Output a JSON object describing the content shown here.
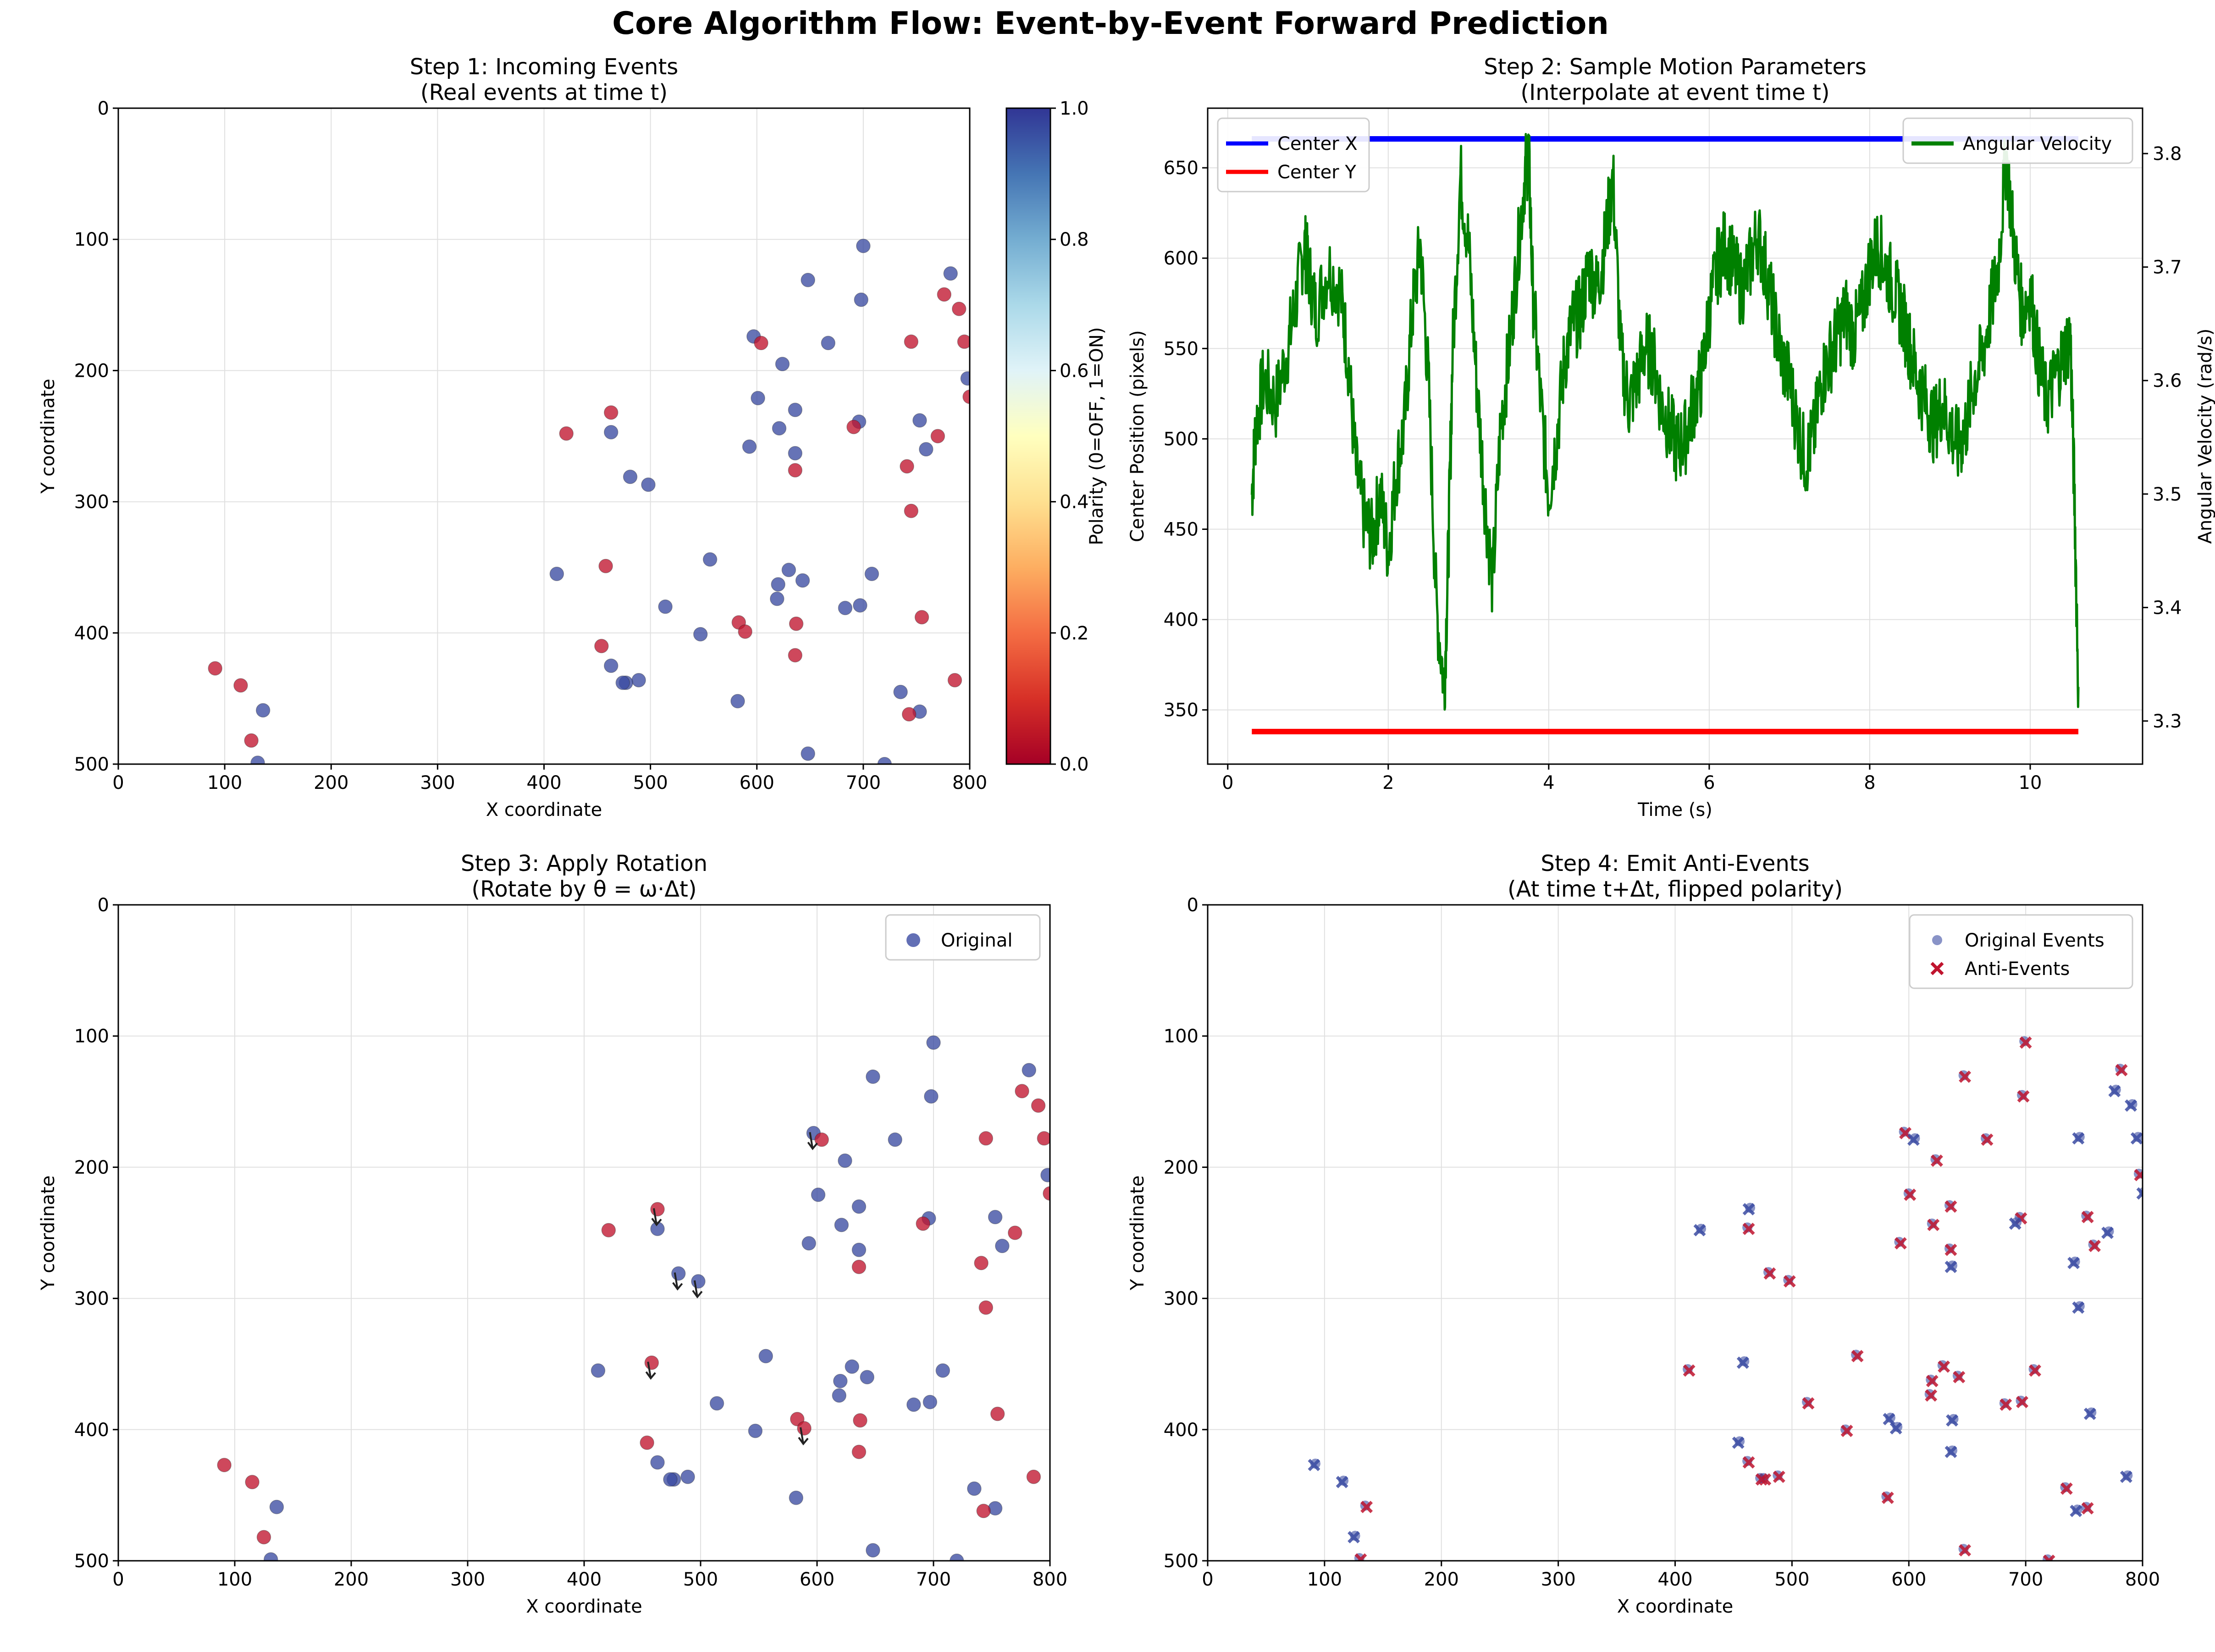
{
  "figure": {
    "suptitle": "Core Algorithm Flow: Event-by-Event Forward Prediction"
  },
  "chart_data": [
    {
      "id": "step1",
      "type": "scatter",
      "title": "Step 1: Incoming Events",
      "subtitle": "(Real events at time t)",
      "xlabel": "X coordinate",
      "ylabel": "Y coordinate",
      "xlim": [
        0,
        800
      ],
      "ylim": [
        500,
        0
      ],
      "xticks": [
        "0",
        "100",
        "200",
        "300",
        "400",
        "500",
        "600",
        "700",
        "800"
      ],
      "yticks": [
        "0",
        "100",
        "200",
        "300",
        "400",
        "500"
      ],
      "grid": true,
      "colorbar": {
        "label": "Polarity (0=OFF, 1=ON)",
        "range": [
          0,
          1
        ],
        "ticks": [
          "0.0",
          "0.2",
          "0.4",
          "0.6",
          "0.8",
          "1.0"
        ],
        "colormap": "RdYlBu"
      },
      "colors": {
        "on": "#3b4ba2",
        "off": "#c0142e"
      },
      "points": [
        {
          "x": 700,
          "y": 105,
          "p": 1
        },
        {
          "x": 782,
          "y": 126,
          "p": 1
        },
        {
          "x": 648,
          "y": 131,
          "p": 1
        },
        {
          "x": 776,
          "y": 142,
          "p": 0
        },
        {
          "x": 698,
          "y": 146,
          "p": 1
        },
        {
          "x": 790,
          "y": 153,
          "p": 0
        },
        {
          "x": 597,
          "y": 174,
          "p": 1
        },
        {
          "x": 604,
          "y": 179,
          "p": 0
        },
        {
          "x": 667,
          "y": 179,
          "p": 1
        },
        {
          "x": 745,
          "y": 178,
          "p": 0
        },
        {
          "x": 795,
          "y": 178,
          "p": 0
        },
        {
          "x": 624,
          "y": 195,
          "p": 1
        },
        {
          "x": 798,
          "y": 206,
          "p": 1
        },
        {
          "x": 800,
          "y": 220,
          "p": 0
        },
        {
          "x": 601,
          "y": 221,
          "p": 1
        },
        {
          "x": 463,
          "y": 232,
          "p": 0
        },
        {
          "x": 636,
          "y": 230,
          "p": 1
        },
        {
          "x": 753,
          "y": 238,
          "p": 1
        },
        {
          "x": 696,
          "y": 239,
          "p": 1
        },
        {
          "x": 691,
          "y": 243,
          "p": 0
        },
        {
          "x": 621,
          "y": 244,
          "p": 1
        },
        {
          "x": 421,
          "y": 248,
          "p": 0
        },
        {
          "x": 463,
          "y": 247,
          "p": 1
        },
        {
          "x": 770,
          "y": 250,
          "p": 0
        },
        {
          "x": 593,
          "y": 258,
          "p": 1
        },
        {
          "x": 759,
          "y": 260,
          "p": 1
        },
        {
          "x": 636,
          "y": 263,
          "p": 1
        },
        {
          "x": 741,
          "y": 273,
          "p": 0
        },
        {
          "x": 636,
          "y": 276,
          "p": 0
        },
        {
          "x": 481,
          "y": 281,
          "p": 1
        },
        {
          "x": 498,
          "y": 287,
          "p": 1
        },
        {
          "x": 745,
          "y": 307,
          "p": 0
        },
        {
          "x": 556,
          "y": 344,
          "p": 1
        },
        {
          "x": 458,
          "y": 349,
          "p": 0
        },
        {
          "x": 630,
          "y": 352,
          "p": 1
        },
        {
          "x": 412,
          "y": 355,
          "p": 1
        },
        {
          "x": 708,
          "y": 355,
          "p": 1
        },
        {
          "x": 643,
          "y": 360,
          "p": 1
        },
        {
          "x": 620,
          "y": 363,
          "p": 1
        },
        {
          "x": 619,
          "y": 374,
          "p": 1
        },
        {
          "x": 514,
          "y": 380,
          "p": 1
        },
        {
          "x": 683,
          "y": 381,
          "p": 1
        },
        {
          "x": 697,
          "y": 379,
          "p": 1
        },
        {
          "x": 755,
          "y": 388,
          "p": 0
        },
        {
          "x": 583,
          "y": 392,
          "p": 0
        },
        {
          "x": 637,
          "y": 393,
          "p": 0
        },
        {
          "x": 589,
          "y": 399,
          "p": 0
        },
        {
          "x": 547,
          "y": 401,
          "p": 1
        },
        {
          "x": 454,
          "y": 410,
          "p": 0
        },
        {
          "x": 636,
          "y": 417,
          "p": 0
        },
        {
          "x": 91,
          "y": 427,
          "p": 0
        },
        {
          "x": 463,
          "y": 425,
          "p": 1
        },
        {
          "x": 489,
          "y": 436,
          "p": 1
        },
        {
          "x": 477,
          "y": 438,
          "p": 1
        },
        {
          "x": 474,
          "y": 438,
          "p": 1
        },
        {
          "x": 786,
          "y": 436,
          "p": 0
        },
        {
          "x": 115,
          "y": 440,
          "p": 0
        },
        {
          "x": 735,
          "y": 445,
          "p": 1
        },
        {
          "x": 582,
          "y": 452,
          "p": 1
        },
        {
          "x": 136,
          "y": 459,
          "p": 1
        },
        {
          "x": 753,
          "y": 460,
          "p": 1
        },
        {
          "x": 743,
          "y": 462,
          "p": 0
        },
        {
          "x": 125,
          "y": 482,
          "p": 0
        },
        {
          "x": 648,
          "y": 492,
          "p": 1
        },
        {
          "x": 131,
          "y": 499,
          "p": 1
        },
        {
          "x": 720,
          "y": 500,
          "p": 1
        }
      ]
    },
    {
      "id": "step2",
      "type": "line",
      "title": "Step 2: Sample Motion Parameters",
      "subtitle": "(Interpolate at event time t)",
      "xlabel": "Time (s)",
      "ylabel": "Center Position (pixels)",
      "ylabel_right": "Angular Velocity (rad/s)",
      "xlim": [
        -0.25,
        11.4
      ],
      "ylim": [
        320,
        683
      ],
      "ylim_right": [
        3.262,
        3.84
      ],
      "xticks": [
        "0",
        "2",
        "4",
        "6",
        "8",
        "10"
      ],
      "yticks": [
        "350",
        "400",
        "450",
        "500",
        "550",
        "600",
        "650"
      ],
      "yticks_right": [
        "3.3",
        "3.4",
        "3.5",
        "3.6",
        "3.7",
        "3.8"
      ],
      "grid": true,
      "legend_left": "upper-left",
      "legend_right": "upper-right",
      "series": [
        {
          "name": "Center X",
          "color": "#0000ff",
          "axis": "left",
          "x": [
            0.3,
            10.6
          ],
          "y": [
            666,
            666
          ]
        },
        {
          "name": "Center Y",
          "color": "#ff0000",
          "axis": "left",
          "x": [
            0.3,
            10.6
          ],
          "y": [
            338,
            338
          ]
        },
        {
          "name": "Angular Velocity",
          "color": "#008000",
          "axis": "right",
          "x": [
            0.3,
            0.35,
            0.45,
            0.6,
            0.75,
            0.85,
            0.95,
            1.0,
            1.1,
            1.25,
            1.4,
            1.5,
            1.6,
            1.7,
            1.8,
            1.9,
            2.0,
            2.1,
            2.2,
            2.3,
            2.4,
            2.5,
            2.6,
            2.7,
            2.75,
            2.8,
            2.9,
            3.0,
            3.1,
            3.2,
            3.3,
            3.4,
            3.5,
            3.6,
            3.7,
            3.75,
            3.8,
            3.9,
            4.0,
            4.1,
            4.2,
            4.3,
            4.4,
            4.5,
            4.6,
            4.7,
            4.8,
            4.9,
            5.0,
            5.1,
            5.2,
            5.3,
            5.4,
            5.5,
            5.6,
            5.7,
            5.8,
            5.9,
            6.0,
            6.1,
            6.2,
            6.3,
            6.4,
            6.5,
            6.6,
            6.7,
            6.8,
            6.9,
            7.0,
            7.1,
            7.2,
            7.3,
            7.4,
            7.5,
            7.6,
            7.7,
            7.8,
            7.9,
            8.0,
            8.1,
            8.2,
            8.3,
            8.4,
            8.5,
            8.6,
            8.7,
            8.8,
            8.9,
            9.0,
            9.1,
            9.2,
            9.3,
            9.4,
            9.5,
            9.6,
            9.7,
            9.8,
            9.9,
            10.0,
            10.1,
            10.2,
            10.3,
            10.4,
            10.5,
            10.55,
            10.6
          ],
          "y": [
            3.5,
            3.56,
            3.6,
            3.58,
            3.63,
            3.67,
            3.72,
            3.7,
            3.66,
            3.7,
            3.68,
            3.62,
            3.52,
            3.48,
            3.46,
            3.5,
            3.45,
            3.52,
            3.56,
            3.66,
            3.72,
            3.6,
            3.4,
            3.33,
            3.45,
            3.62,
            3.78,
            3.72,
            3.6,
            3.5,
            3.42,
            3.56,
            3.62,
            3.7,
            3.78,
            3.8,
            3.68,
            3.58,
            3.5,
            3.55,
            3.62,
            3.65,
            3.66,
            3.7,
            3.68,
            3.72,
            3.78,
            3.62,
            3.58,
            3.6,
            3.63,
            3.62,
            3.58,
            3.56,
            3.54,
            3.55,
            3.58,
            3.6,
            3.66,
            3.7,
            3.72,
            3.7,
            3.68,
            3.7,
            3.73,
            3.7,
            3.66,
            3.62,
            3.6,
            3.56,
            3.53,
            3.55,
            3.6,
            3.62,
            3.64,
            3.66,
            3.64,
            3.66,
            3.7,
            3.72,
            3.7,
            3.68,
            3.66,
            3.63,
            3.6,
            3.58,
            3.56,
            3.58,
            3.56,
            3.54,
            3.56,
            3.6,
            3.62,
            3.66,
            3.7,
            3.8,
            3.72,
            3.66,
            3.68,
            3.62,
            3.58,
            3.6,
            3.62,
            3.64,
            3.5,
            3.33
          ]
        }
      ]
    },
    {
      "id": "step3",
      "type": "scatter",
      "title": "Step 3: Apply Rotation",
      "subtitle": "(Rotate by θ = ω·Δt)",
      "xlabel": "X coordinate",
      "ylabel": "Y coordinate",
      "xlim": [
        0,
        800
      ],
      "ylim": [
        500,
        0
      ],
      "xticks": [
        "0",
        "100",
        "200",
        "300",
        "400",
        "500",
        "600",
        "700",
        "800"
      ],
      "yticks": [
        "0",
        "100",
        "200",
        "300",
        "400",
        "500"
      ],
      "grid": true,
      "legend": [
        "Original"
      ],
      "legend_position": "upper-right",
      "points_from": "step1",
      "rotation_arrows": [
        {
          "x": 463,
          "y": 232
        },
        {
          "x": 481,
          "y": 281
        },
        {
          "x": 498,
          "y": 287
        },
        {
          "x": 458,
          "y": 349
        },
        {
          "x": 597,
          "y": 174
        },
        {
          "x": 589,
          "y": 399
        }
      ]
    },
    {
      "id": "step4",
      "type": "scatter",
      "title": "Step 4: Emit Anti-Events",
      "subtitle": "(At time t+Δt, flipped polarity)",
      "xlabel": "X coordinate",
      "ylabel": "Y coordinate",
      "xlim": [
        0,
        800
      ],
      "ylim": [
        500,
        0
      ],
      "xticks": [
        "0",
        "100",
        "200",
        "300",
        "400",
        "500",
        "600",
        "700",
        "800"
      ],
      "yticks": [
        "0",
        "100",
        "200",
        "300",
        "400",
        "500"
      ],
      "grid": true,
      "legend": [
        "Original Events",
        "Anti-Events"
      ],
      "legend_position": "upper-right",
      "points_from": "step1"
    }
  ]
}
